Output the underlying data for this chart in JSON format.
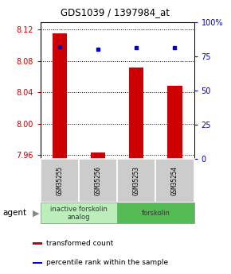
{
  "title": "GDS1039 / 1397984_at",
  "samples": [
    "GSM35255",
    "GSM35256",
    "GSM35253",
    "GSM35254"
  ],
  "bar_values": [
    8.115,
    7.963,
    8.072,
    8.048
  ],
  "percentile_values": [
    82,
    80,
    81,
    81
  ],
  "ylim_left": [
    7.955,
    8.13
  ],
  "ylim_right": [
    0,
    100
  ],
  "yticks_left": [
    7.96,
    8.0,
    8.04,
    8.08,
    8.12
  ],
  "yticks_right": [
    0,
    25,
    50,
    75,
    100
  ],
  "ytick_labels_right": [
    "0",
    "25",
    "50",
    "75",
    "100%"
  ],
  "bar_color": "#cc0000",
  "dot_color": "#0000cc",
  "baseline": 7.955,
  "bar_width": 0.38,
  "agent_groups": [
    {
      "label": "inactive forskolin\nanalog",
      "start": 0,
      "end": 2,
      "color": "#bbeebb"
    },
    {
      "label": "forskolin",
      "start": 2,
      "end": 4,
      "color": "#55bb55"
    }
  ],
  "legend_items": [
    {
      "color": "#cc0000",
      "label": "transformed count"
    },
    {
      "color": "#0000cc",
      "label": "percentile rank within the sample"
    }
  ],
  "agent_label": "agent"
}
